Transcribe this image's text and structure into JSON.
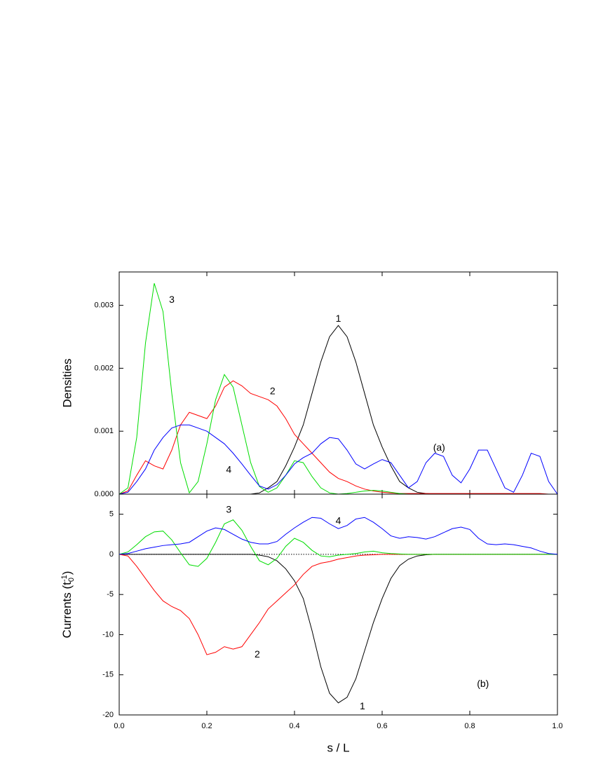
{
  "chart_data": [
    {
      "type": "line",
      "ylabel": "Densities",
      "panel_label": "(a)",
      "x": [
        0,
        0.02,
        0.04,
        0.06,
        0.08,
        0.1,
        0.12,
        0.14,
        0.16,
        0.18,
        0.2,
        0.22,
        0.24,
        0.26,
        0.28,
        0.3,
        0.32,
        0.34,
        0.36,
        0.38,
        0.4,
        0.42,
        0.44,
        0.46,
        0.48,
        0.5,
        0.52,
        0.54,
        0.56,
        0.58,
        0.6,
        0.62,
        0.64,
        0.66,
        0.68,
        0.7,
        0.72,
        0.74,
        0.76,
        0.78,
        0.8,
        0.82,
        0.84,
        0.86,
        0.88,
        0.9,
        0.92,
        0.94,
        0.96,
        0.98,
        1
      ],
      "xlim": [
        0,
        1
      ],
      "xticks": [
        0,
        0.2,
        0.4,
        0.6,
        0.8,
        1
      ],
      "ylim": [
        0,
        0.00353
      ],
      "yticks": [
        {
          "value": 0,
          "label": "0.000"
        },
        0.001,
        0.002,
        0.003
      ],
      "series": [
        {
          "name": "1",
          "color": "#000000",
          "values": [
            0,
            0,
            0,
            0,
            0,
            0,
            0,
            0,
            0,
            0,
            0,
            0,
            0,
            0,
            0,
            0,
            2e-05,
            0.0001,
            0.0002,
            0.00045,
            0.00075,
            0.0011,
            0.0016,
            0.0021,
            0.0025,
            0.00268,
            0.0025,
            0.0021,
            0.0016,
            0.0011,
            0.00075,
            0.00045,
            0.0002,
            0.0001,
            3e-05,
            1e-05,
            0,
            0,
            0,
            0,
            0,
            0,
            0,
            0,
            0,
            0,
            0,
            0,
            0,
            0,
            0
          ]
        },
        {
          "name": "2",
          "color": "#ff0000",
          "values": [
            0,
            5e-05,
            0.0003,
            0.00053,
            0.00045,
            0.0004,
            0.0007,
            0.0011,
            0.0013,
            0.00125,
            0.0012,
            0.0014,
            0.0017,
            0.0018,
            0.00172,
            0.0016,
            0.00155,
            0.0015,
            0.0014,
            0.0012,
            0.00095,
            0.0008,
            0.00065,
            0.0005,
            0.00035,
            0.00025,
            0.0002,
            0.00013,
            8e-05,
            5e-05,
            3e-05,
            2e-05,
            1e-05,
            1e-05,
            1e-05,
            1e-05,
            1e-05,
            1e-05,
            1e-05,
            1e-05,
            1e-05,
            1e-05,
            1e-05,
            1e-05,
            1e-05,
            1e-05,
            1e-05,
            1e-05,
            1e-05,
            0,
            0
          ]
        },
        {
          "name": "3",
          "color": "#00dd00",
          "values": [
            0,
            0.0001,
            0.0009,
            0.0024,
            0.00335,
            0.0029,
            0.0016,
            0.0005,
            2e-05,
            0.0002,
            0.0008,
            0.0015,
            0.0019,
            0.0017,
            0.0011,
            0.0005,
            0.00012,
            3e-05,
            0.0001,
            0.0003,
            0.00053,
            0.0005,
            0.00028,
            0.0001,
            2e-05,
            0,
            1e-05,
            3e-05,
            5e-05,
            6e-05,
            5e-05,
            3e-05,
            1e-05,
            0,
            0,
            0,
            0,
            0,
            0,
            0,
            0,
            0,
            0,
            0,
            0,
            0,
            0,
            0,
            0,
            0,
            0
          ]
        },
        {
          "name": "4",
          "color": "#0000ff",
          "values": [
            0,
            3e-05,
            0.0002,
            0.0004,
            0.0007,
            0.0009,
            0.00105,
            0.0011,
            0.0011,
            0.00105,
            0.001,
            0.0009,
            0.0008,
            0.00065,
            0.00048,
            0.0003,
            0.00013,
            8e-05,
            0.00015,
            0.0003,
            0.00048,
            0.00058,
            0.00065,
            0.0008,
            0.0009,
            0.00088,
            0.0007,
            0.00048,
            0.0004,
            0.00048,
            0.00055,
            0.0005,
            0.0003,
            0.0001,
            0.0002,
            0.0005,
            0.00065,
            0.0006,
            0.0003,
            0.00018,
            0.0004,
            0.0007,
            0.0007,
            0.0004,
            0.0001,
            3e-05,
            0.0003,
            0.00065,
            0.0006,
            0.0002,
            0
          ]
        }
      ]
    },
    {
      "type": "line",
      "ylabel_parts": [
        "Currents (t",
        "0",
        "-1",
        ")"
      ],
      "xlabel": "s / L",
      "panel_label": "(b)",
      "zero_line": true,
      "x": [
        0,
        0.02,
        0.04,
        0.06,
        0.08,
        0.1,
        0.12,
        0.14,
        0.16,
        0.18,
        0.2,
        0.22,
        0.24,
        0.26,
        0.28,
        0.3,
        0.32,
        0.34,
        0.36,
        0.38,
        0.4,
        0.42,
        0.44,
        0.46,
        0.48,
        0.5,
        0.52,
        0.54,
        0.56,
        0.58,
        0.6,
        0.62,
        0.64,
        0.66,
        0.68,
        0.7,
        0.72,
        0.74,
        0.76,
        0.78,
        0.8,
        0.82,
        0.84,
        0.86,
        0.88,
        0.9,
        0.92,
        0.94,
        0.96,
        0.98,
        1
      ],
      "xlim": [
        0,
        1
      ],
      "xticks": [
        {
          "value": 0,
          "label": "0.0"
        },
        0.2,
        0.4,
        0.6,
        0.8,
        {
          "value": 1,
          "label": "1.0"
        }
      ],
      "ylim": [
        -20,
        7.5
      ],
      "yticks": [
        -20,
        -15,
        -10,
        -5,
        0,
        5
      ],
      "series": [
        {
          "name": "1",
          "color": "#000000",
          "values": [
            0,
            0,
            0,
            0,
            0,
            0,
            0,
            0,
            0,
            0,
            0,
            0,
            0,
            0,
            0,
            0,
            -0.1,
            -0.3,
            -0.8,
            -1.8,
            -3.3,
            -5.5,
            -9.5,
            -14,
            -17.3,
            -18.5,
            -17.8,
            -15.5,
            -12,
            -8.5,
            -5.5,
            -3,
            -1.4,
            -0.6,
            -0.2,
            -0.05,
            0,
            0,
            0,
            0,
            0,
            0,
            0,
            0,
            0,
            0,
            0,
            0,
            0,
            0,
            0
          ]
        },
        {
          "name": "2",
          "color": "#ff0000",
          "values": [
            0,
            -0.2,
            -1.5,
            -3,
            -4.5,
            -5.8,
            -6.5,
            -7,
            -8,
            -10,
            -12.5,
            -12.2,
            -11.5,
            -11.8,
            -11.5,
            -10,
            -8.5,
            -6.8,
            -5.8,
            -4.8,
            -3.8,
            -2.5,
            -1.5,
            -1.1,
            -0.9,
            -0.6,
            -0.4,
            -0.2,
            -0.1,
            -0.05,
            0,
            0,
            0,
            0,
            0,
            0,
            0,
            0,
            0,
            0,
            0,
            0,
            0,
            0,
            0,
            0,
            0,
            0,
            0,
            0,
            0
          ]
        },
        {
          "name": "3",
          "color": "#00dd00",
          "values": [
            0,
            0.3,
            1.2,
            2.2,
            2.8,
            2.9,
            1.8,
            0.2,
            -1.3,
            -1.5,
            -0.5,
            1.5,
            3.8,
            4.3,
            3,
            1,
            -0.8,
            -1.3,
            -0.5,
            1,
            2,
            1.5,
            0.5,
            -0.2,
            -0.3,
            -0.1,
            0,
            0.1,
            0.3,
            0.4,
            0.2,
            0.1,
            0.05,
            0,
            0,
            0,
            0,
            0,
            0,
            0,
            0,
            0,
            0,
            0,
            0,
            0,
            0,
            0,
            0,
            0,
            0
          ]
        },
        {
          "name": "4",
          "color": "#0000ff",
          "values": [
            0,
            0.1,
            0.4,
            0.7,
            0.9,
            1.1,
            1.2,
            1.3,
            1.5,
            2.2,
            2.9,
            3.3,
            3.1,
            2.5,
            1.9,
            1.5,
            1.3,
            1.3,
            1.6,
            2.5,
            3.3,
            4,
            4.6,
            4.5,
            3.8,
            3.2,
            3.6,
            4.4,
            4.6,
            4,
            3.2,
            2.3,
            2,
            2.2,
            2.1,
            1.9,
            2.2,
            2.7,
            3.2,
            3.4,
            3.1,
            2,
            1.3,
            1.2,
            1.3,
            1.2,
            1,
            0.8,
            0.4,
            0.1,
            0
          ]
        }
      ]
    }
  ]
}
